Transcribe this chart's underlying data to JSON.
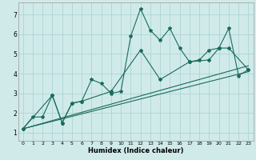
{
  "xlabel": "Humidex (Indice chaleur)",
  "x_ticks": [
    0,
    1,
    2,
    3,
    4,
    5,
    6,
    7,
    8,
    9,
    10,
    11,
    12,
    13,
    14,
    15,
    16,
    17,
    18,
    19,
    20,
    21,
    22,
    23
  ],
  "y_ticks": [
    1,
    2,
    3,
    4,
    5,
    6,
    7
  ],
  "ylim": [
    0.6,
    7.6
  ],
  "xlim": [
    -0.5,
    23.5
  ],
  "bg_color": "#d0eaea",
  "grid_color": "#aed4d4",
  "line_color": "#1a6b5a",
  "line1_x": [
    0,
    1,
    2,
    3,
    4,
    5,
    6,
    7,
    8,
    9,
    10,
    11,
    12,
    13,
    14,
    15,
    16,
    17,
    18,
    19,
    20,
    21,
    22,
    23
  ],
  "line1_y": [
    1.2,
    1.8,
    1.8,
    2.9,
    1.5,
    2.5,
    2.6,
    3.7,
    3.5,
    3.0,
    3.1,
    5.9,
    7.3,
    6.2,
    5.7,
    6.3,
    5.3,
    4.6,
    4.7,
    5.2,
    5.3,
    6.3,
    3.9,
    4.2
  ],
  "line2_x": [
    0,
    3,
    4,
    5,
    6,
    9,
    12,
    14,
    17,
    19,
    20,
    21,
    23
  ],
  "line2_y": [
    1.2,
    2.9,
    1.5,
    2.5,
    2.6,
    3.1,
    5.2,
    3.7,
    4.6,
    4.7,
    5.3,
    5.3,
    4.2
  ],
  "line3_x": [
    0,
    23
  ],
  "line3_y": [
    1.2,
    4.1
  ],
  "line4_x": [
    0,
    23
  ],
  "line4_y": [
    1.2,
    4.4
  ]
}
